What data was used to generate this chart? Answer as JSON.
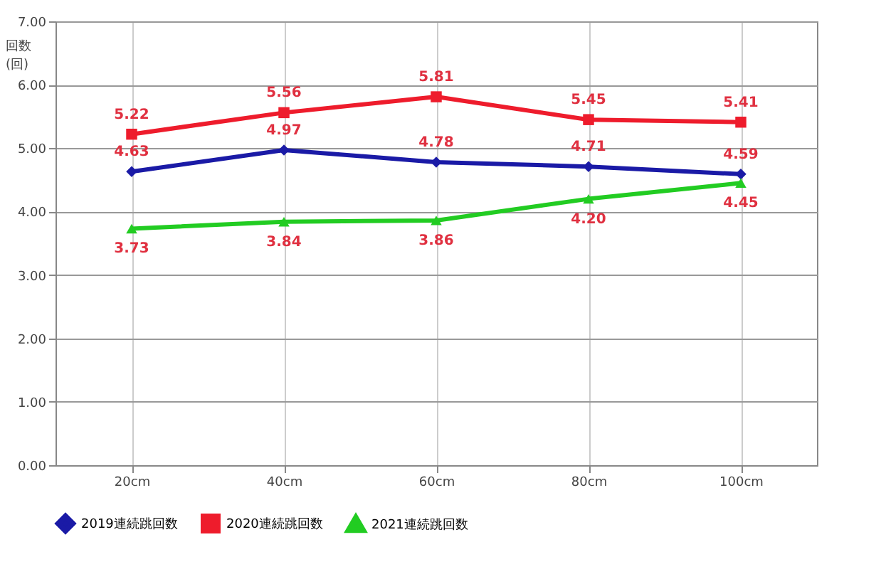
{
  "chart_data": {
    "type": "line",
    "ylabel": "回数(回)",
    "categories": [
      "20cm",
      "40cm",
      "60cm",
      "80cm",
      "100cm"
    ],
    "series": [
      {
        "name": "2019連続跳回数",
        "color": "#1a1aa6",
        "marker": "diamond",
        "values": [
          4.63,
          4.97,
          4.78,
          4.71,
          4.59
        ],
        "value_labels": [
          "4.63",
          "4.97",
          "4.78",
          "4.71",
          "4.59"
        ]
      },
      {
        "name": "2020連続跳回数",
        "color": "#ee1c2c",
        "marker": "square",
        "values": [
          5.22,
          5.56,
          5.81,
          5.45,
          5.41
        ],
        "value_labels": [
          "5.22",
          "5.56",
          "5.81",
          "5.45",
          "5.41"
        ]
      },
      {
        "name": "2021連続跳回数",
        "color": "#22cc22",
        "marker": "triangle",
        "values": [
          3.73,
          3.84,
          3.86,
          4.2,
          4.45
        ],
        "value_labels": [
          "3.73",
          "3.84",
          "3.86",
          "4.20",
          "4.45"
        ]
      }
    ],
    "ylim": [
      0,
      7
    ],
    "yticks": [
      {
        "value": 0,
        "label": "0.00"
      },
      {
        "value": 1,
        "label": "1.00"
      },
      {
        "value": 2,
        "label": "2.00"
      },
      {
        "value": 3,
        "label": "3.00"
      },
      {
        "value": 4,
        "label": "4.00"
      },
      {
        "value": 5,
        "label": "5.00"
      },
      {
        "value": 6,
        "label": "6.00"
      },
      {
        "value": 7,
        "label": "7.00"
      }
    ],
    "grid": true,
    "legend": "bottom"
  }
}
